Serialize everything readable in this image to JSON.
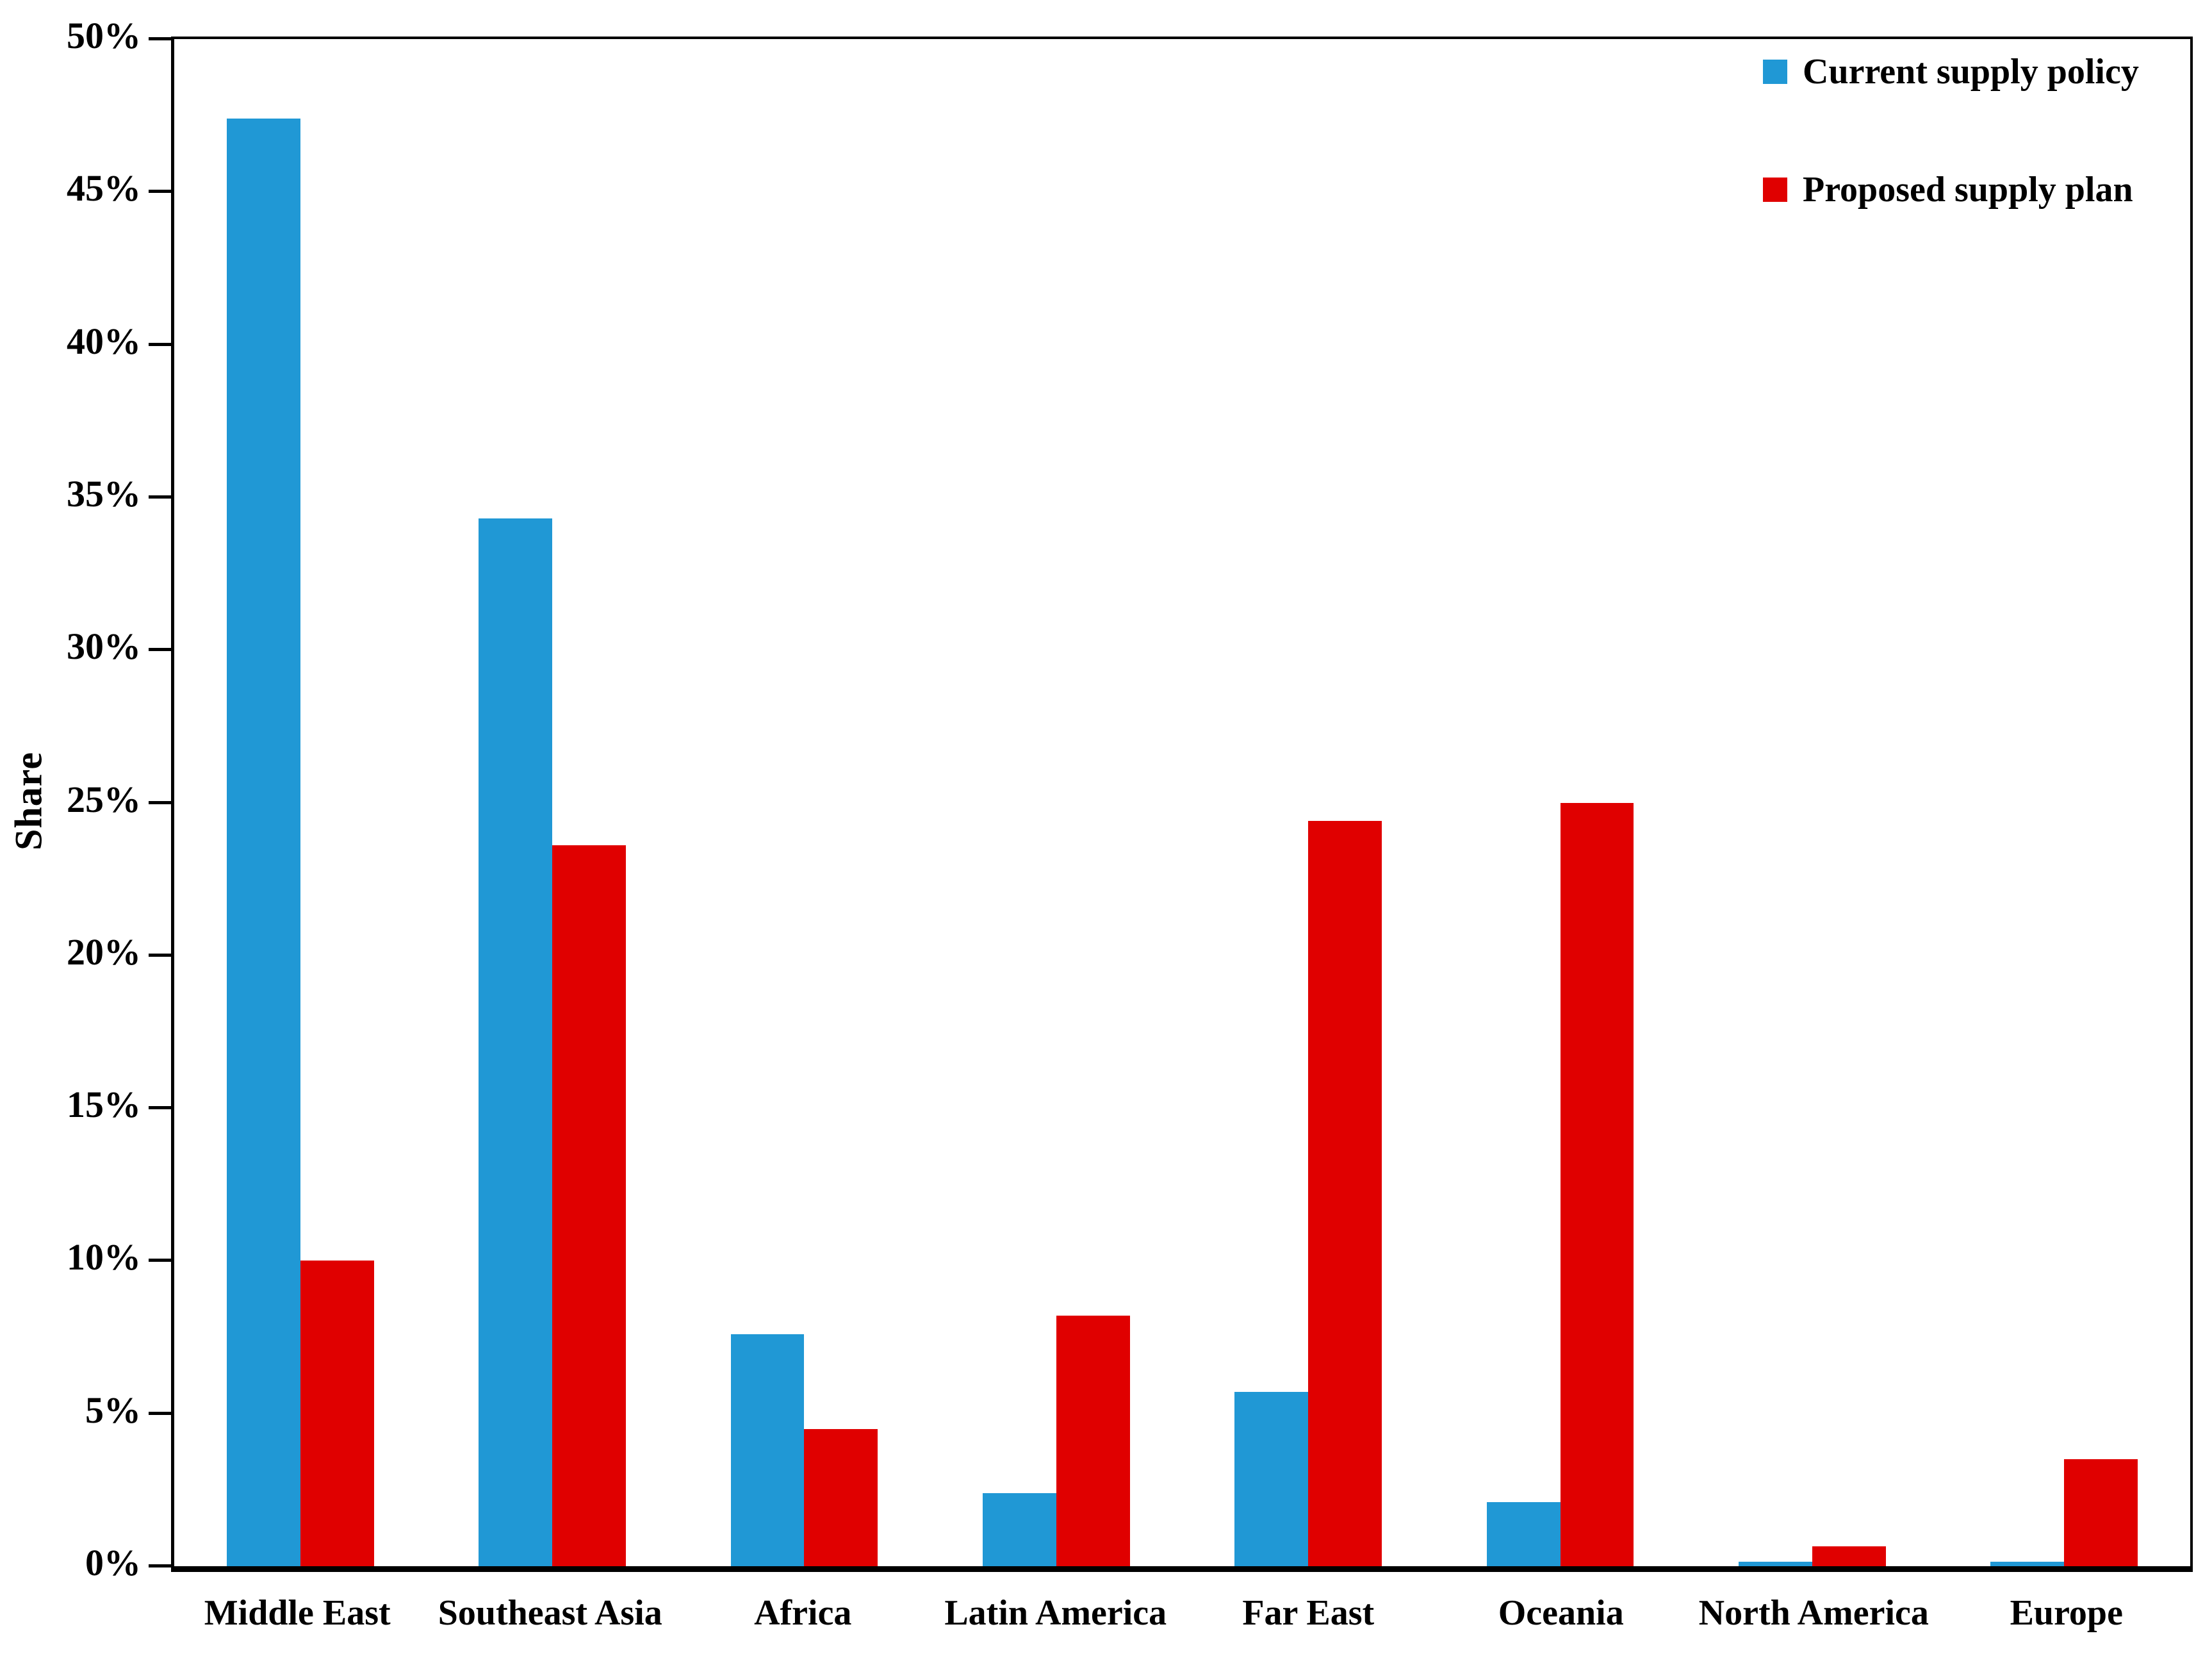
{
  "chart_data": {
    "type": "bar",
    "title": "",
    "categories": [
      "Middle East",
      "Southeast Asia",
      "Africa",
      "Latin America",
      "Far East",
      "Oceania",
      "North America",
      "Europe"
    ],
    "series": [
      {
        "name": "Current supply policy",
        "color": "#2098D5",
        "values": [
          47.4,
          34.3,
          7.6,
          2.4,
          5.7,
          2.1,
          0.15,
          0.15
        ]
      },
      {
        "name": "Proposed supply plan",
        "color": "#E00000",
        "values": [
          10.0,
          23.6,
          4.5,
          8.2,
          24.4,
          25.0,
          0.65,
          3.5
        ]
      }
    ],
    "xlabel": "",
    "ylabel": "Share",
    "ylim": [
      0,
      50
    ],
    "ytick_step": 5,
    "yticks": [
      "0%",
      "5%",
      "10%",
      "15%",
      "20%",
      "25%",
      "30%",
      "35%",
      "40%",
      "45%",
      "50%"
    ],
    "grid": false,
    "legend_position": "top-right",
    "axis_color": "#000000",
    "background_color": "#FFFFFF"
  }
}
